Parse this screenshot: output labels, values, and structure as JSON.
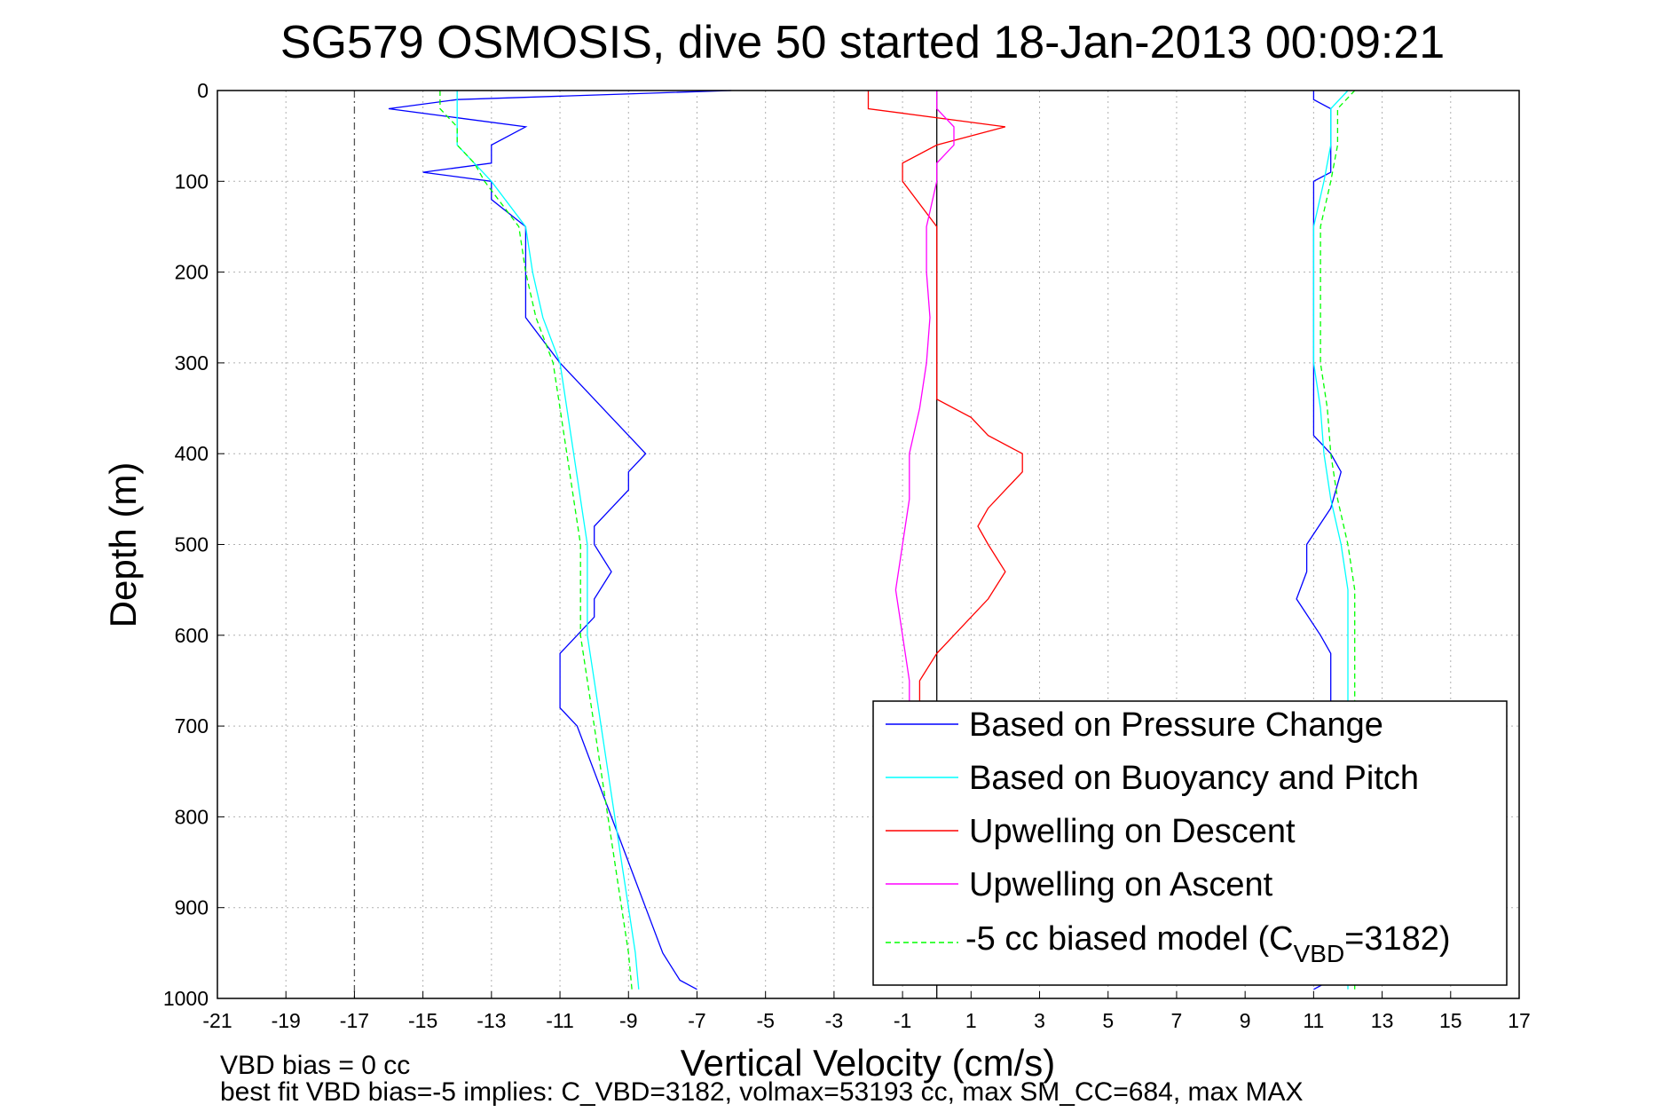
{
  "chart_data": {
    "type": "line",
    "title": "SG579 OSMOSIS, dive 50 started 18-Jan-2013 00:09:21",
    "xlabel": "Vertical Velocity (cm/s)",
    "ylabel": "Depth (m)",
    "xlim": [
      -21,
      17
    ],
    "ylim": [
      1000,
      0
    ],
    "y_reversed": true,
    "grid": true,
    "xticks": [
      -21,
      -19,
      -17,
      -15,
      -13,
      -11,
      -9,
      -7,
      -5,
      -3,
      -1,
      1,
      3,
      5,
      7,
      9,
      11,
      13,
      15,
      17
    ],
    "yticks": [
      0,
      100,
      200,
      300,
      400,
      500,
      600,
      700,
      800,
      900,
      1000
    ],
    "vertical_ref_lines": [
      {
        "x": -17,
        "style": "dashed",
        "color": "#555555"
      },
      {
        "x": 0,
        "style": "solid",
        "color": "#000000"
      }
    ],
    "legend_position": "bottom-right",
    "series": [
      {
        "name": "Based on Pressure Change",
        "color": "#0000ff",
        "style": "solid",
        "segments": [
          {
            "depth": [
              0,
              10,
              20,
              30,
              40,
              60,
              80,
              90,
              100,
              120,
              150,
              200,
              250,
              300,
              340,
              360,
              380,
              400,
              420,
              440,
              460,
              480,
              500,
              530,
              560,
              580,
              600,
              620,
              650,
              680,
              700,
              750,
              800,
              850,
              900,
              950,
              980,
              990
            ],
            "velocity": [
              -6,
              -14,
              -16,
              -14,
              -12,
              -13,
              -13,
              -15,
              -13,
              -13,
              -12,
              -12,
              -12,
              -11,
              -10,
              -9.5,
              -9,
              -8.5,
              -9,
              -9,
              -9.5,
              -10,
              -10,
              -9.5,
              -10,
              -10,
              -10.5,
              -11,
              -11,
              -11,
              -10.5,
              -10,
              -9.5,
              -9,
              -8.5,
              -8,
              -7.5,
              -7
            ]
          },
          {
            "depth": [
              990,
              980,
              950,
              900,
              850,
              800,
              750,
              700,
              650,
              620,
              600,
              560,
              530,
              500,
              460,
              420,
              400,
              380,
              340,
              300,
              250,
              200,
              150,
              100,
              90,
              60,
              40,
              20,
              10,
              0
            ],
            "velocity": [
              11,
              11.5,
              11.5,
              11.5,
              11.5,
              11.5,
              11.5,
              11.5,
              11.5,
              11.5,
              11.2,
              10.5,
              10.8,
              10.8,
              11.5,
              11.8,
              11.5,
              11,
              11,
              11,
              11,
              11,
              11,
              11,
              11.5,
              11.5,
              11.5,
              11.5,
              11,
              11
            ]
          }
        ]
      },
      {
        "name": "Based on Buoyancy and Pitch",
        "color": "#00ffff",
        "style": "solid",
        "segments": [
          {
            "depth": [
              0,
              20,
              40,
              60,
              80,
              100,
              150,
              200,
              250,
              300,
              350,
              400,
              450,
              500,
              550,
              600,
              650,
              700,
              750,
              800,
              850,
              900,
              950,
              990
            ],
            "velocity": [
              -14,
              -14,
              -14,
              -14,
              -13.5,
              -13,
              -12,
              -11.8,
              -11.5,
              -11,
              -10.8,
              -10.6,
              -10.4,
              -10.2,
              -10.2,
              -10.2,
              -10,
              -9.8,
              -9.6,
              -9.4,
              -9.2,
              -9,
              -8.8,
              -8.7
            ]
          },
          {
            "depth": [
              990,
              950,
              900,
              850,
              800,
              750,
              700,
              650,
              600,
              550,
              500,
              450,
              400,
              350,
              300,
              250,
              200,
              150,
              100,
              60,
              40,
              20,
              0
            ],
            "velocity": [
              12,
              12,
              12,
              12,
              12,
              12,
              12,
              12,
              12,
              12,
              11.8,
              11.5,
              11.3,
              11.2,
              11,
              11,
              11,
              11,
              11.3,
              11.5,
              11.5,
              11.5,
              12
            ]
          }
        ]
      },
      {
        "name": "Upwelling on Descent",
        "color": "#ff0000",
        "style": "solid",
        "segments": [
          {
            "depth": [
              0,
              20,
              40,
              60,
              80,
              100,
              150,
              200,
              250,
              300,
              340,
              360,
              380,
              400,
              420,
              440,
              460,
              480,
              500,
              530,
              560,
              580,
              600,
              620,
              650,
              680
            ],
            "velocity": [
              -2,
              -2,
              2,
              0,
              -1,
              -1,
              0,
              0,
              0,
              0,
              0,
              1,
              1.5,
              2.5,
              2.5,
              2,
              1.5,
              1.2,
              1.5,
              2,
              1.5,
              1,
              0.5,
              0,
              -0.5,
              -0.5
            ]
          }
        ]
      },
      {
        "name": "Upwelling on Ascent",
        "color": "#ff00ff",
        "style": "solid",
        "segments": [
          {
            "depth": [
              0,
              20,
              40,
              60,
              80,
              100,
              150,
              200,
              250,
              300,
              350,
              400,
              450,
              500,
              550,
              600,
              650,
              680
            ],
            "velocity": [
              0,
              0,
              0.5,
              0.5,
              0,
              0,
              -0.3,
              -0.3,
              -0.2,
              -0.3,
              -0.5,
              -0.8,
              -0.8,
              -1,
              -1.2,
              -1,
              -0.8,
              -0.8
            ]
          }
        ]
      },
      {
        "name": "-5 cc biased model (C_VBD=3182)",
        "color": "#00ff00",
        "style": "dashed",
        "segments": [
          {
            "depth": [
              0,
              20,
              40,
              60,
              80,
              100,
              150,
              200,
              250,
              300,
              350,
              400,
              450,
              500,
              550,
              600,
              650,
              700,
              750,
              800,
              850,
              900,
              950,
              990
            ],
            "velocity": [
              -14.5,
              -14.5,
              -14,
              -14,
              -13.5,
              -13.2,
              -12.2,
              -12,
              -11.7,
              -11.2,
              -11,
              -10.8,
              -10.6,
              -10.4,
              -10.4,
              -10.4,
              -10.2,
              -10,
              -9.8,
              -9.6,
              -9.4,
              -9.2,
              -9,
              -8.9
            ]
          },
          {
            "depth": [
              990,
              950,
              900,
              850,
              800,
              750,
              700,
              650,
              600,
              550,
              500,
              450,
              400,
              350,
              300,
              250,
              200,
              150,
              100,
              60,
              40,
              20,
              0
            ],
            "velocity": [
              12.2,
              12.2,
              12.2,
              12.2,
              12.2,
              12.2,
              12.2,
              12.2,
              12.2,
              12.2,
              12,
              11.7,
              11.5,
              11.4,
              11.2,
              11.2,
              11.2,
              11.2,
              11.5,
              11.7,
              11.7,
              11.7,
              12.2
            ]
          }
        ]
      }
    ],
    "legend_entries": [
      {
        "label": "Based on Pressure Change",
        "color": "#0000ff",
        "style": "solid"
      },
      {
        "label": "Based on Buoyancy and Pitch",
        "color": "#00ffff",
        "style": "solid"
      },
      {
        "label": "Upwelling on Descent",
        "color": "#ff0000",
        "style": "solid"
      },
      {
        "label": "Upwelling on Ascent",
        "color": "#ff00ff",
        "style": "solid"
      },
      {
        "label_prefix": "-5 cc biased model (C",
        "label_sub": "VBD",
        "label_suffix": "=3182)",
        "color": "#00ff00",
        "style": "dashed"
      }
    ],
    "footer_lines": [
      "VBD bias = 0 cc",
      "best fit VBD bias=-5 implies: C_VBD=3182, volmax=53193 cc, max SM_CC=684, max MAX"
    ]
  }
}
